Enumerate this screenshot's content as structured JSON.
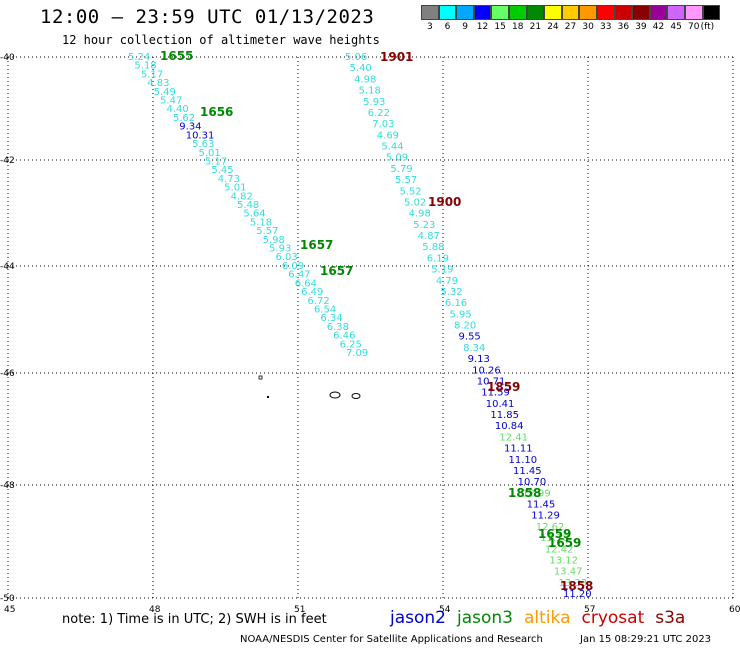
{
  "title": "12:00 – 23:59 UTC 01/13/2023",
  "subtitle": "12 hour collection of altimeter wave heights",
  "legend": {
    "colors": [
      "#808080",
      "#00ffff",
      "#00a8ff",
      "#0000ff",
      "#66ff66",
      "#00cc00",
      "#008800",
      "#ffff00",
      "#ffcc00",
      "#ff9900",
      "#ff0000",
      "#cc0000",
      "#880000",
      "#990099",
      "#cc66ff",
      "#ff99ff",
      "#000000"
    ],
    "labels": [
      "3",
      "6",
      "9",
      "12",
      "15",
      "18",
      "21",
      "24",
      "27",
      "30",
      "33",
      "36",
      "39",
      "42",
      "45",
      "70",
      "(ft)"
    ]
  },
  "axes": {
    "lon_ticks": [
      "45",
      "48",
      "51",
      "54",
      "57",
      "60"
    ],
    "lat_ticks": [
      "-40",
      "-42",
      "-44",
      "-46",
      "-48",
      "-50"
    ]
  },
  "wave_colors": {
    "cyan": "#33dddd",
    "blue": "#0000cc",
    "green": "#66dd66",
    "time_green": "#008800",
    "time_red": "#880000"
  },
  "tracks": {
    "a": [
      "5.24",
      "5.18",
      "5.17",
      "4.83",
      "5.49",
      "5.47",
      "4.40",
      "5.62",
      "9.34",
      "10.31",
      "5.63",
      "5.01",
      "5.17",
      "5.45",
      "4.73",
      "5.01",
      "4.82",
      "5.48",
      "5.64",
      "5.18",
      "5.57",
      "5.98",
      "5.93",
      "6.03",
      "6.09",
      "6.47",
      "6.64",
      "6.49",
      "6.72",
      "6.54",
      "6.34",
      "6.38",
      "6.46",
      "6.25",
      "7.09"
    ],
    "b": [
      "5.06",
      "5.40",
      "4.98",
      "5.18",
      "5.93",
      "6.22",
      "7.03",
      "4.69",
      "5.44",
      "5.09",
      "5.79",
      "5.57",
      "5.52",
      "5.02",
      "4.98",
      "5.23",
      "4.87",
      "5.88",
      "6.19",
      "5.19",
      "4.79",
      "5.32",
      "6.16",
      "5.95",
      "8.20",
      "9.55",
      "8.34",
      "9.13",
      "10.26",
      "10.71",
      "11.59",
      "10.41",
      "11.85",
      "10.84",
      "12.41",
      "11.11",
      "11.10",
      "11.45",
      "10.70",
      "12.99",
      "11.45",
      "11.29",
      "12.62",
      "13.18",
      "12.42",
      "13.12",
      "13.47",
      "13.33",
      "11.20"
    ]
  },
  "time_labels": [
    "1655",
    "1656",
    "1657",
    "1657",
    "1901",
    "1900",
    "1859",
    "1858",
    "1659",
    "1659",
    "1858"
  ],
  "note": "note: 1) Time is in UTC; 2) SWH is in feet",
  "satellites": [
    {
      "name": "jason2",
      "color": "#0000cc"
    },
    {
      "name": "jason3",
      "color": "#008800"
    },
    {
      "name": "altika",
      "color": "#ff9900"
    },
    {
      "name": "cryosat",
      "color": "#cc0000"
    },
    {
      "name": "s3a",
      "color": "#880000"
    }
  ],
  "credit": "NOAA/NESDIS Center for Satellite Applications and Research",
  "timestamp": "Jan 15 08:29:21 UTC 2023"
}
